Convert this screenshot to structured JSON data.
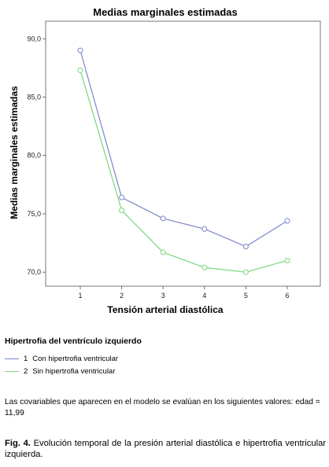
{
  "chart_data": {
    "type": "line",
    "title": "Medias marginales estimadas",
    "xlabel": "Tensión arterial diastólica",
    "ylabel": "Medias marginales estimadas",
    "categories": [
      "1",
      "2",
      "3",
      "4",
      "5",
      "6"
    ],
    "y_ticks": [
      "70,0",
      "75,0",
      "80,0",
      "85,0",
      "90,0"
    ],
    "ylim": [
      68.8,
      91.5
    ],
    "grid": false,
    "series": [
      {
        "name": "Con hipertrofia ventricular",
        "color": "#7b86c9",
        "values": [
          89.0,
          76.4,
          74.6,
          73.7,
          72.2,
          74.4
        ]
      },
      {
        "name": "Sin hipertrofia ventricular",
        "color": "#79d67a",
        "values": [
          87.3,
          75.3,
          71.7,
          70.4,
          70.0,
          71.0
        ]
      }
    ]
  },
  "legend": {
    "title": "Hipertrofia del ventrículo izquierdo",
    "items": [
      {
        "num": "1",
        "label": "Con hipertrofia ventricular",
        "color": "#7b86c9"
      },
      {
        "num": "2",
        "label": "Sin hipertrofia ventricular",
        "color": "#79d67a"
      }
    ]
  },
  "covariates_note": "Las covariables que aparecen en el modelo se evalúan en los siguientes valores: edad = 11,99",
  "caption": {
    "label": "Fig. 4.",
    "text": "Evolución temporal de la presión arterial diastólica e hipertrofia ventricular izquierda."
  }
}
